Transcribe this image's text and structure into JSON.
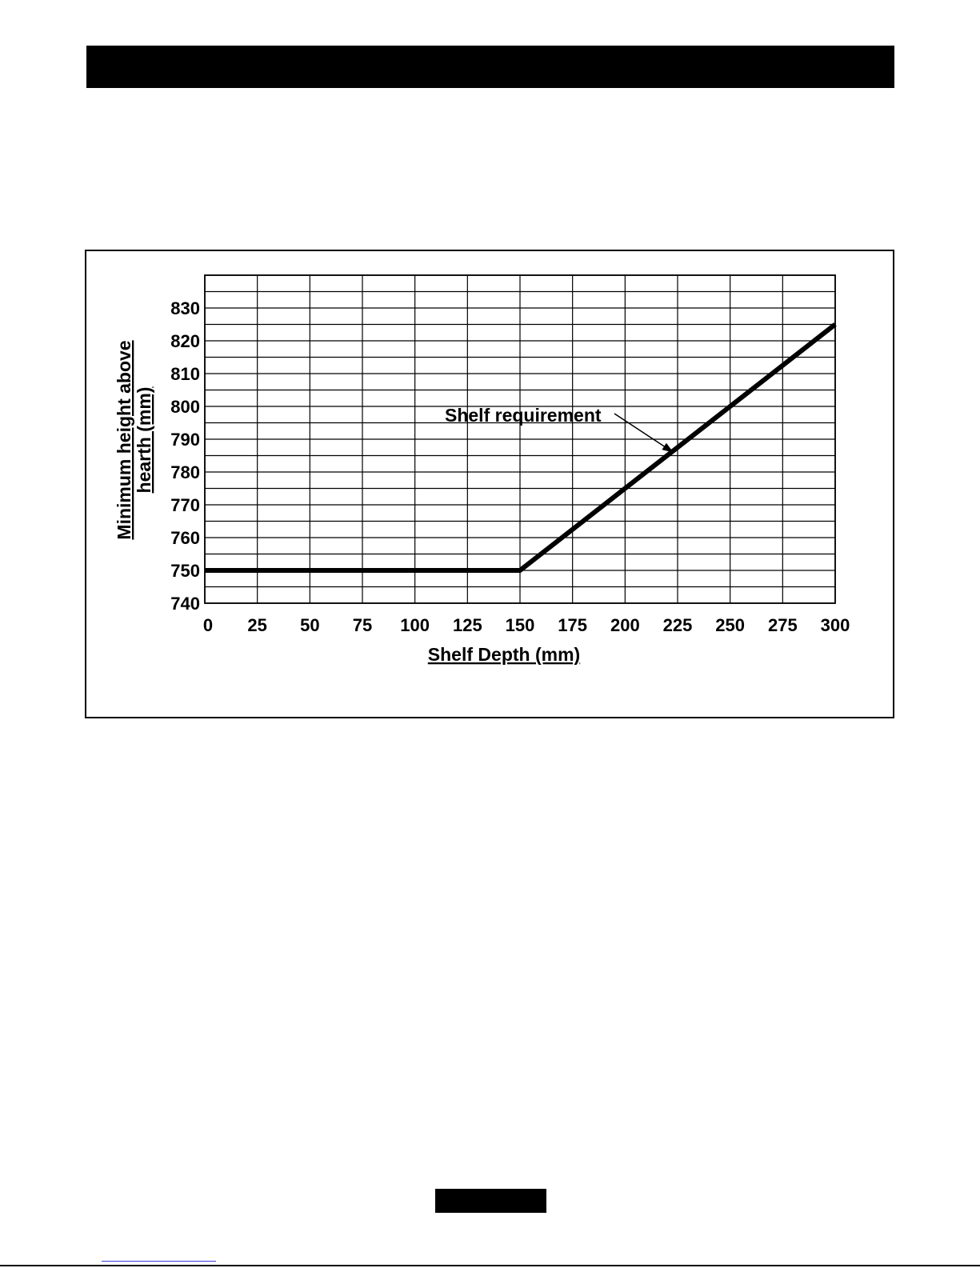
{
  "chart_data": {
    "type": "line",
    "title": "",
    "xlabel": "Shelf Depth (mm)",
    "ylabel_lines": [
      "Minimum height above",
      "hearth (mm)"
    ],
    "xlim": [
      0,
      300
    ],
    "ylim": [
      740,
      840
    ],
    "x_ticks": [
      0,
      25,
      50,
      75,
      100,
      125,
      150,
      175,
      200,
      225,
      250,
      275,
      300
    ],
    "y_ticks": [
      740,
      750,
      760,
      770,
      780,
      790,
      800,
      810,
      820,
      830
    ],
    "grid": true,
    "series": [
      {
        "x": [
          0,
          150,
          300
        ],
        "y": [
          750,
          750,
          825
        ]
      }
    ],
    "annotation": {
      "text": "Shelf requirement",
      "points_to": [
        220,
        784
      ]
    }
  }
}
